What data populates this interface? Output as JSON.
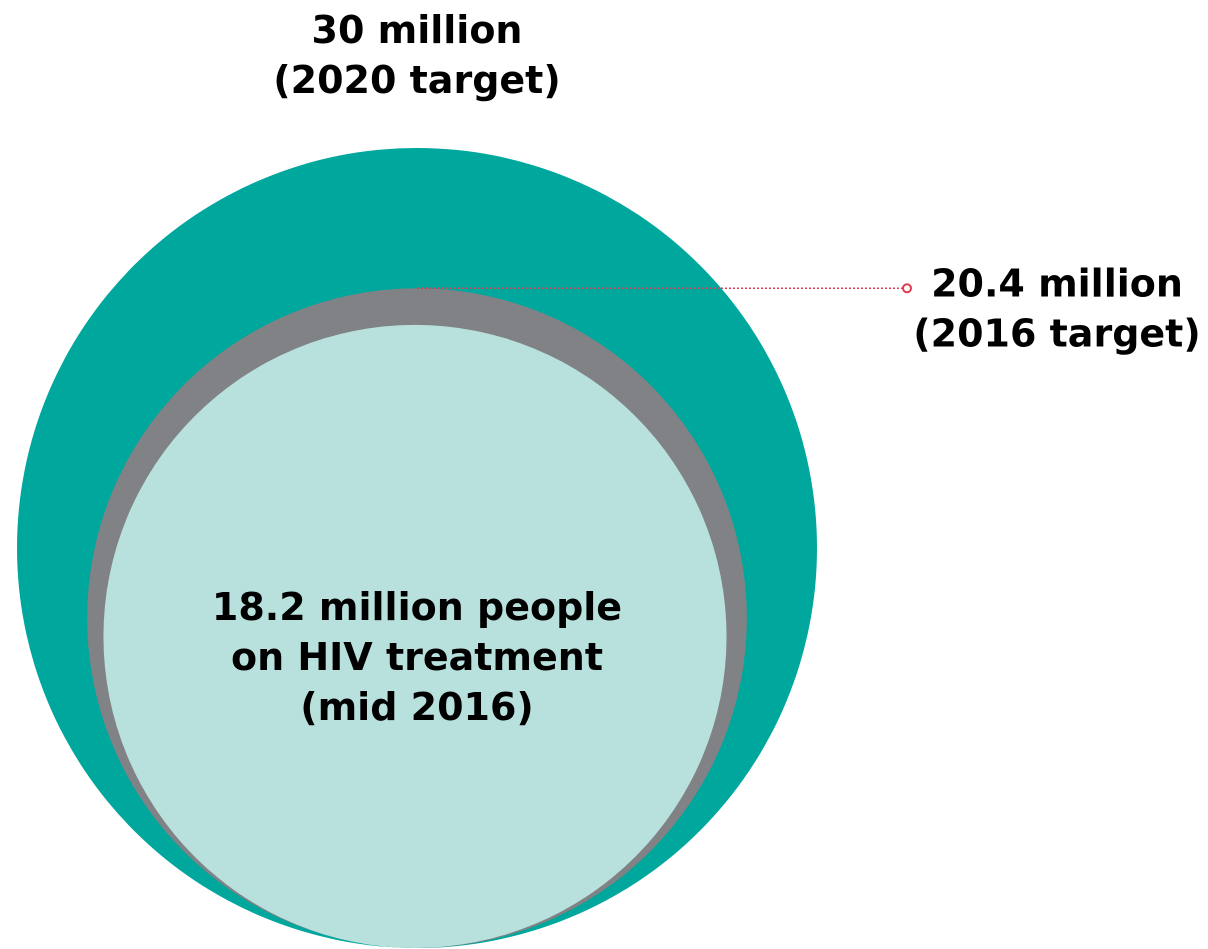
{
  "chart_data": {
    "type": "nested-circles",
    "unit": "million",
    "series": [
      {
        "value": 30,
        "label_lines": [
          "30 million",
          "(2020 target)"
        ],
        "color": "#00a79d"
      },
      {
        "value": 20.4,
        "label_lines": [
          "20.4 million",
          "(2016 target)"
        ],
        "color": "#808285"
      },
      {
        "value": 18.2,
        "label_lines": [
          "18.2 million people",
          "on HIV treatment",
          "(mid 2016)"
        ],
        "color": "#b8e1dd"
      }
    ],
    "leader_line_color": "#e03c4f"
  }
}
